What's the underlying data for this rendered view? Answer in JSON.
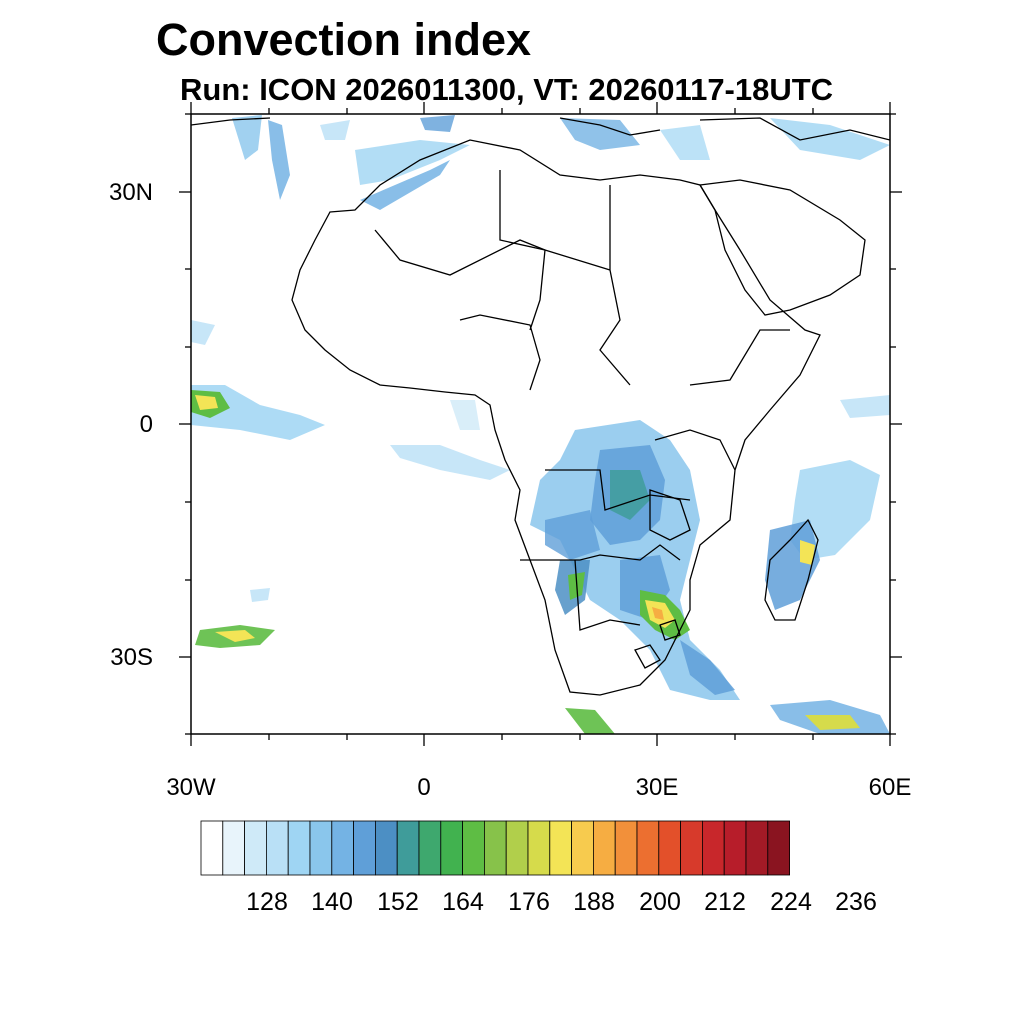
{
  "title": "Convection index",
  "subtitle": "Run: ICON 2026011300,  VT: 20260117-18UTC",
  "map": {
    "lat_ticks": [
      "30N",
      "0",
      "30S"
    ],
    "lon_ticks": [
      "30W",
      "0",
      "30E",
      "60E"
    ],
    "extent": {
      "lon_min": -30,
      "lon_max": 60,
      "lat_min": -40,
      "lat_max": 40
    }
  },
  "colorbar": {
    "colors": [
      "#ffffff",
      "#e8f4fb",
      "#cfeaf8",
      "#b9e0f6",
      "#9fd5f3",
      "#8ac6ec",
      "#74b3e4",
      "#5f9fd8",
      "#4c8fc4",
      "#3f9c9a",
      "#3ea86e",
      "#41b24f",
      "#5ebd44",
      "#87c24a",
      "#b1cf4b",
      "#d6db4b",
      "#f3e456",
      "#f7cb4e",
      "#f6ad42",
      "#f2903a",
      "#ec6f30",
      "#e3502a",
      "#d73a2b",
      "#c8272b",
      "#b71d2a",
      "#a31a26",
      "#8a1420"
    ],
    "labels": [
      "128",
      "140",
      "152",
      "164",
      "176",
      "188",
      "200",
      "212",
      "224",
      "236"
    ]
  }
}
